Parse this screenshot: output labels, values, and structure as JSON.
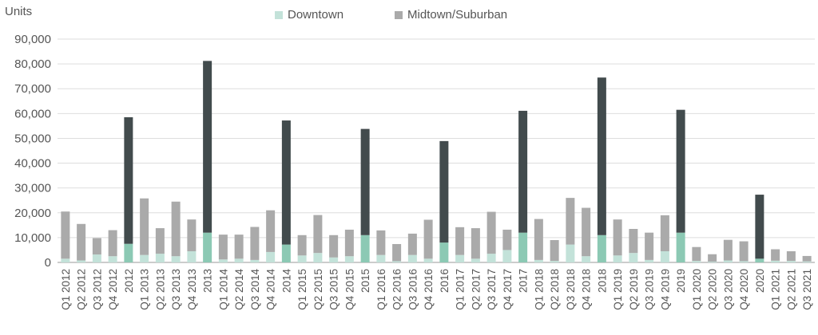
{
  "chart_data": {
    "type": "bar",
    "stacked": true,
    "ylabel": "Units",
    "ylim": [
      0,
      90000
    ],
    "yticks": [
      0,
      10000,
      20000,
      30000,
      40000,
      50000,
      60000,
      70000,
      80000,
      90000
    ],
    "ytick_labels": [
      "0",
      "10,000",
      "20,000",
      "30,000",
      "40,000",
      "50,000",
      "60,000",
      "70,000",
      "80,000",
      "90,000"
    ],
    "legend": {
      "position": "top-center"
    },
    "grid": true,
    "categories": [
      "Q1 2012",
      "Q2 2012",
      "Q3 2012",
      "Q4 2012",
      "2012",
      "Q1 2013",
      "Q2 2013",
      "Q3 2013",
      "Q4 2013",
      "2013",
      "Q1 2014",
      "Q2 2014",
      "Q3 2014",
      "Q4 2014",
      "2014",
      "Q1 2015",
      "Q2 2015",
      "Q3 2015",
      "Q4 2015",
      "2015",
      "Q1 2016",
      "Q2 2016",
      "Q3 2016",
      "Q4 2016",
      "2016",
      "Q1 2017",
      "Q2 2017",
      "Q3 2017",
      "Q4 2017",
      "2017",
      "Q1 2018",
      "Q2 2018",
      "Q3 2018",
      "Q4 2018",
      "2018",
      "Q1 2019",
      "Q2 2019",
      "Q3 2019",
      "Q4 2019",
      "2019",
      "Q1 2020",
      "Q2 2020",
      "Q3 2020",
      "Q4 2020",
      "2020",
      "Q1 2021",
      "Q2 2021",
      "Q3 2021"
    ],
    "annual_categories": [
      "2012",
      "2013",
      "2014",
      "2015",
      "2016",
      "2017",
      "2018",
      "2019",
      "2020"
    ],
    "series": [
      {
        "name": "Downtown",
        "color": "#c3e2d9",
        "annual_color": "#8cc9b4",
        "values": [
          1500,
          800,
          3200,
          2500,
          7500,
          3000,
          3500,
          2500,
          4500,
          12000,
          1200,
          1500,
          1000,
          4200,
          7200,
          2800,
          3800,
          2000,
          2500,
          11000,
          3000,
          500,
          3000,
          1500,
          8000,
          3000,
          1500,
          3500,
          5000,
          12000,
          1000,
          600,
          7200,
          2500,
          11000,
          2800,
          3800,
          1000,
          4500,
          12000,
          600,
          300,
          800,
          500,
          1500,
          700,
          600,
          400
        ]
      },
      {
        "name": "Midtown/Suburban",
        "color": "#aaaaaa",
        "annual_color": "#424b4d",
        "values": [
          19000,
          14700,
          6600,
          10500,
          51000,
          22800,
          10300,
          22000,
          12800,
          69200,
          10000,
          9700,
          13300,
          16800,
          50000,
          8200,
          15300,
          9000,
          10700,
          42800,
          9900,
          6900,
          8600,
          15700,
          40900,
          11200,
          12300,
          16900,
          8200,
          49100,
          16500,
          8400,
          18800,
          19500,
          63500,
          14500,
          9700,
          11000,
          14500,
          49500,
          5600,
          3000,
          8300,
          8000,
          25800,
          4600,
          3900,
          2200
        ]
      }
    ]
  }
}
